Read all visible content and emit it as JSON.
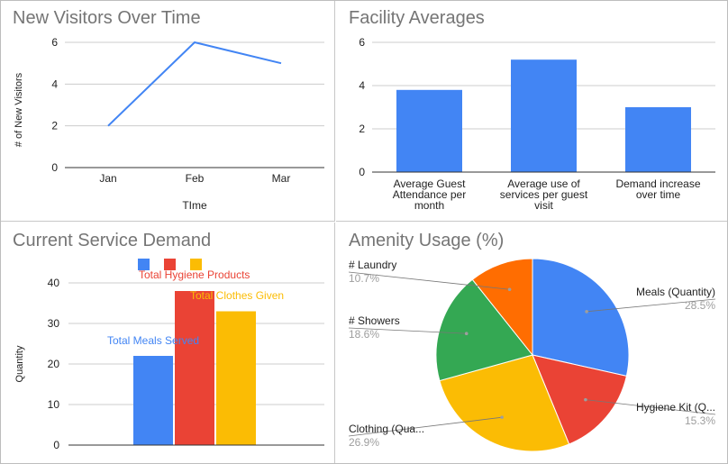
{
  "chart_data": [
    {
      "type": "line",
      "title": "New Visitors Over Time",
      "xlabel": "TIme",
      "ylabel": "# of New Visitors",
      "categories": [
        "Jan",
        "Feb",
        "Mar"
      ],
      "values": [
        2,
        6,
        5
      ],
      "ylim": [
        0,
        6
      ],
      "yticks": [
        0,
        2,
        4,
        6
      ],
      "color": "#4285f4",
      "grid": true
    },
    {
      "type": "bar",
      "title": "Facility Averages",
      "categories": [
        [
          "Average Guest",
          "Attendance per",
          "month"
        ],
        [
          "Average use of",
          "services per guest",
          "visit"
        ],
        [
          "Demand increase",
          "over time"
        ]
      ],
      "values": [
        3.8,
        5.2,
        3.0
      ],
      "ylim": [
        0,
        6
      ],
      "yticks": [
        0,
        2,
        4,
        6
      ],
      "color": "#4285f4",
      "grid": true
    },
    {
      "type": "bar",
      "title": "Current Service Demand",
      "ylabel": "Quantity",
      "series": [
        {
          "name": "Total Meals Served",
          "values": [
            22
          ],
          "color": "#4285f4"
        },
        {
          "name": "Total Hygiene Products",
          "values": [
            38
          ],
          "color": "#ea4335"
        },
        {
          "name": "Total Clothes Given",
          "values": [
            33
          ],
          "color": "#fbbc04"
        }
      ],
      "ylim": [
        0,
        40
      ],
      "yticks": [
        0,
        10,
        20,
        30,
        40
      ],
      "legend": "top",
      "grid": true
    },
    {
      "type": "pie",
      "title": "Amenity Usage (%)",
      "slices": [
        {
          "label": "Meals (Quantity)",
          "value": 28.5,
          "pct": "28.5%",
          "color": "#4285f4"
        },
        {
          "label": "Hygiene Kit (Q...",
          "value": 15.3,
          "pct": "15.3%",
          "color": "#ea4335"
        },
        {
          "label": "Clothing (Qua...",
          "value": 26.9,
          "pct": "26.9%",
          "color": "#fbbc04"
        },
        {
          "label": "# Showers",
          "value": 18.6,
          "pct": "18.6%",
          "color": "#34a853"
        },
        {
          "label": "# Laundry",
          "value": 10.7,
          "pct": "10.7%",
          "color": "#ff6d01"
        }
      ]
    }
  ]
}
